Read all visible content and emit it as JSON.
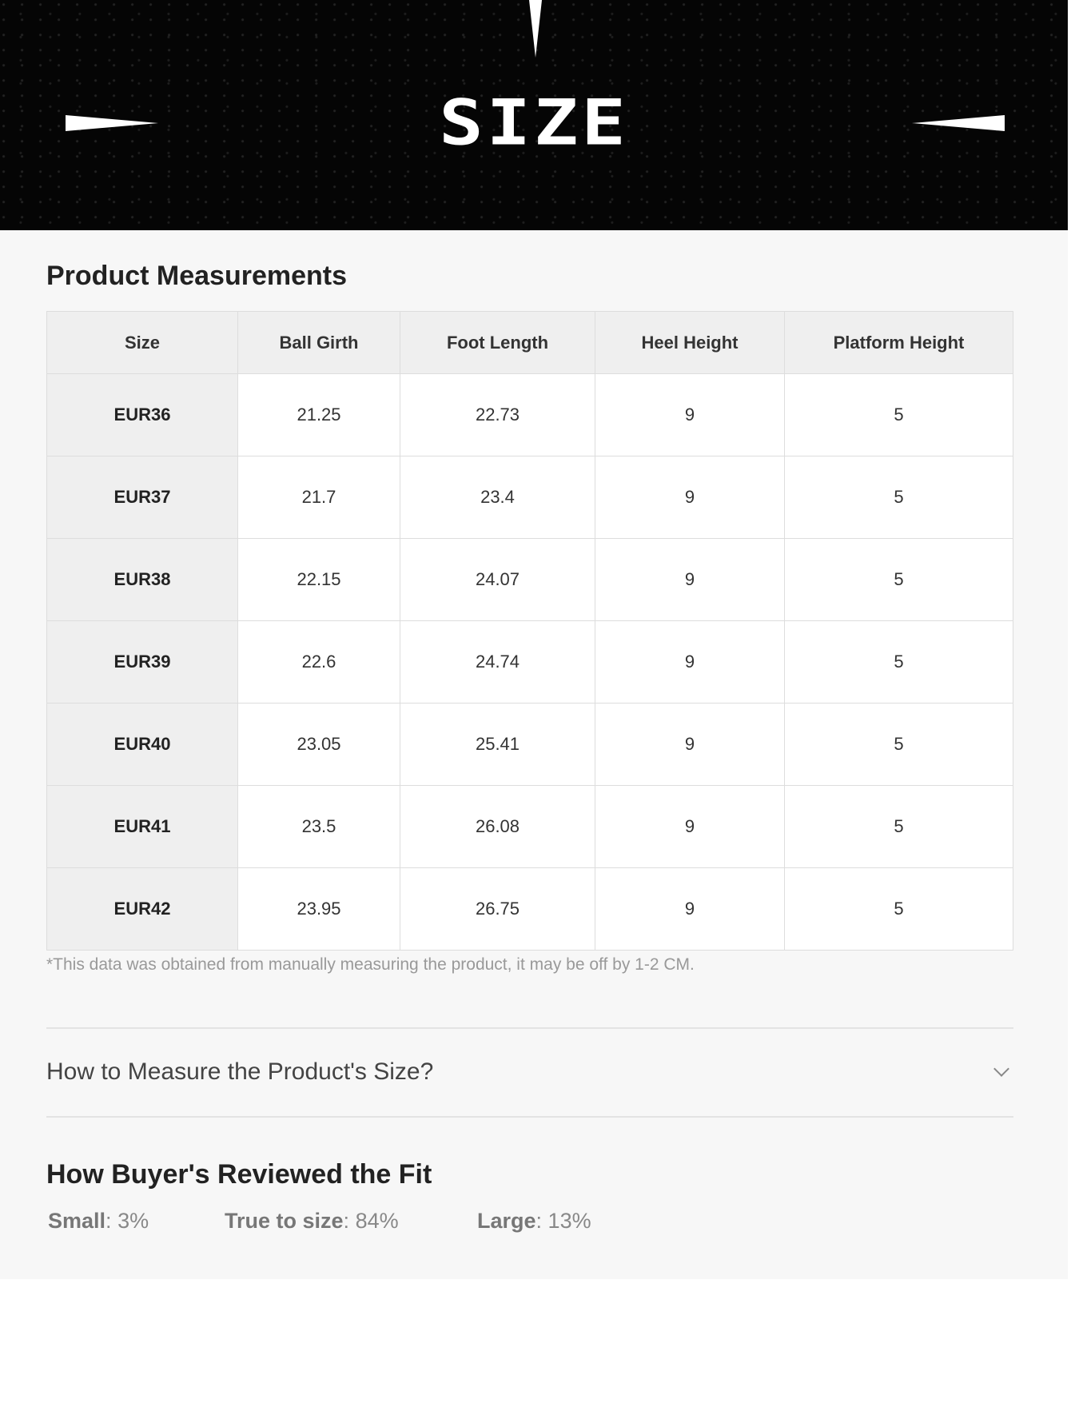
{
  "banner": {
    "title": "SIZE"
  },
  "measurements": {
    "title": "Product Measurements",
    "columns": [
      "Size",
      "Ball Girth",
      "Foot Length",
      "Heel Height",
      "Platform Height"
    ],
    "rows": [
      [
        "EUR36",
        "21.25",
        "22.73",
        "9",
        "5"
      ],
      [
        "EUR37",
        "21.7",
        "23.4",
        "9",
        "5"
      ],
      [
        "EUR38",
        "22.15",
        "24.07",
        "9",
        "5"
      ],
      [
        "EUR39",
        "22.6",
        "24.74",
        "9",
        "5"
      ],
      [
        "EUR40",
        "23.05",
        "25.41",
        "9",
        "5"
      ],
      [
        "EUR41",
        "23.5",
        "26.08",
        "9",
        "5"
      ],
      [
        "EUR42",
        "23.95",
        "26.75",
        "9",
        "5"
      ]
    ],
    "note": "*This data was obtained from manually measuring the product, it may be off by 1-2 CM."
  },
  "accordion": {
    "label": "How to Measure the Product's Size?",
    "icon": "chevron-down-icon"
  },
  "fit": {
    "title": "How Buyer's Reviewed the Fit",
    "items": [
      {
        "label": "Small",
        "value": "3%"
      },
      {
        "label": "True to size",
        "value": "84%"
      },
      {
        "label": "Large",
        "value": "13%"
      }
    ]
  }
}
